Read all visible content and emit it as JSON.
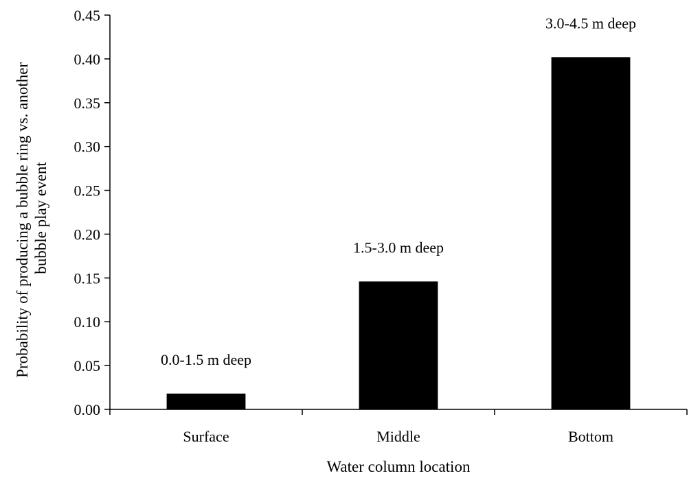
{
  "chart_data": {
    "type": "bar",
    "categories": [
      "Surface",
      "Middle",
      "Bottom"
    ],
    "values": [
      0.018,
      0.146,
      0.402
    ],
    "data_labels": [
      "0.0-1.5 m deep",
      "1.5-3.0 m deep",
      "3.0-4.5 m deep"
    ],
    "xlabel": "Water column location",
    "ylabel_lines": [
      "Probability of producing a bubble ring vs. another",
      "bubble play event"
    ],
    "ylim": [
      0,
      0.45
    ],
    "yticks": [
      "0.00",
      "0.05",
      "0.10",
      "0.15",
      "0.20",
      "0.25",
      "0.30",
      "0.35",
      "0.40",
      "0.45"
    ],
    "grid": false,
    "legend": "none",
    "bar_color": "#000000"
  }
}
